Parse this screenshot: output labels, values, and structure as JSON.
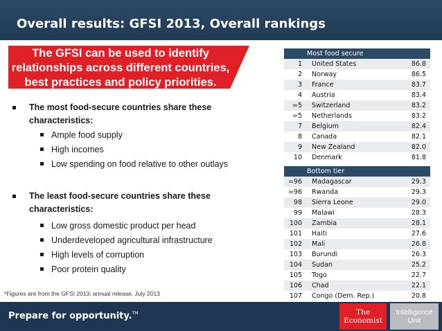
{
  "header": {
    "title": "Overall results:  GFSI 2013, Overall rankings"
  },
  "callout": {
    "lines": [
      "The GFSI can be used to identify",
      "relationships across different countries,",
      "best practices and policy priorities."
    ]
  },
  "most_secure_group": {
    "heading_lines": [
      "The most food-secure countries share these",
      "characteristics:"
    ],
    "items": [
      "Ample food supply",
      "High incomes",
      "Low spending on food relative to other outlays"
    ]
  },
  "least_secure_group": {
    "heading_lines": [
      "The least food-secure countries share these",
      "characteristics:"
    ],
    "items": [
      "Low gross domestic product per head",
      "Underdeveloped agricultural infrastructure",
      "High levels of corruption",
      "Poor protein quality"
    ]
  },
  "footnote": "*Figures are from the GFSI 2013, annual release, July 2013",
  "top_table": {
    "header": "Most food secure",
    "rows": [
      {
        "rank": "1",
        "country": "United States",
        "score": "86.8"
      },
      {
        "rank": "2",
        "country": "Norway",
        "score": "86.5"
      },
      {
        "rank": "3",
        "country": "France",
        "score": "83.7"
      },
      {
        "rank": "4",
        "country": "Austria",
        "score": "83.4"
      },
      {
        "rank": "=5",
        "country": "Switzerland",
        "score": "83.2"
      },
      {
        "rank": "=5",
        "country": "Netherlands",
        "score": "83.2"
      },
      {
        "rank": "7",
        "country": "Belgium",
        "score": "82.4"
      },
      {
        "rank": "8",
        "country": "Canada",
        "score": "82.1"
      },
      {
        "rank": "9",
        "country": "New Zealand",
        "score": "82.0"
      },
      {
        "rank": "10",
        "country": "Denmark",
        "score": "81.8"
      }
    ]
  },
  "bottom_table": {
    "header": "Bottom tier",
    "rows": [
      {
        "rank": "=96",
        "country": "Madagascar",
        "score": "29.3"
      },
      {
        "rank": "=96",
        "country": "Rwanda",
        "score": "29.3"
      },
      {
        "rank": "98",
        "country": "Sierra Leone",
        "score": "29.0"
      },
      {
        "rank": "99",
        "country": "Malawi",
        "score": "28.3"
      },
      {
        "rank": "100",
        "country": "Zambia",
        "score": "28.1"
      },
      {
        "rank": "101",
        "country": "Haiti",
        "score": "27.6"
      },
      {
        "rank": "102",
        "country": "Mali",
        "score": "26.8"
      },
      {
        "rank": "103",
        "country": "Burundi",
        "score": "26.3"
      },
      {
        "rank": "104",
        "country": "Sudan",
        "score": "25.2"
      },
      {
        "rank": "105",
        "country": "Togo",
        "score": "22.7"
      },
      {
        "rank": "106",
        "country": "Chad",
        "score": "22.1"
      },
      {
        "rank": "107",
        "country": "Congo (Dem. Rep.)",
        "score": "20.8"
      }
    ]
  },
  "footer": {
    "tagline": "Prepare for opportunity.",
    "tagline_mark": "TM",
    "economist_logo": [
      "The",
      "Economist"
    ],
    "iu_logo": [
      "Intelligence",
      "Unit"
    ]
  },
  "colors": {
    "header_bg": "#2c4a66",
    "accent_red": "#e02027",
    "footer_bg": "#1e3651",
    "row_alt": "#e9ecef"
  }
}
